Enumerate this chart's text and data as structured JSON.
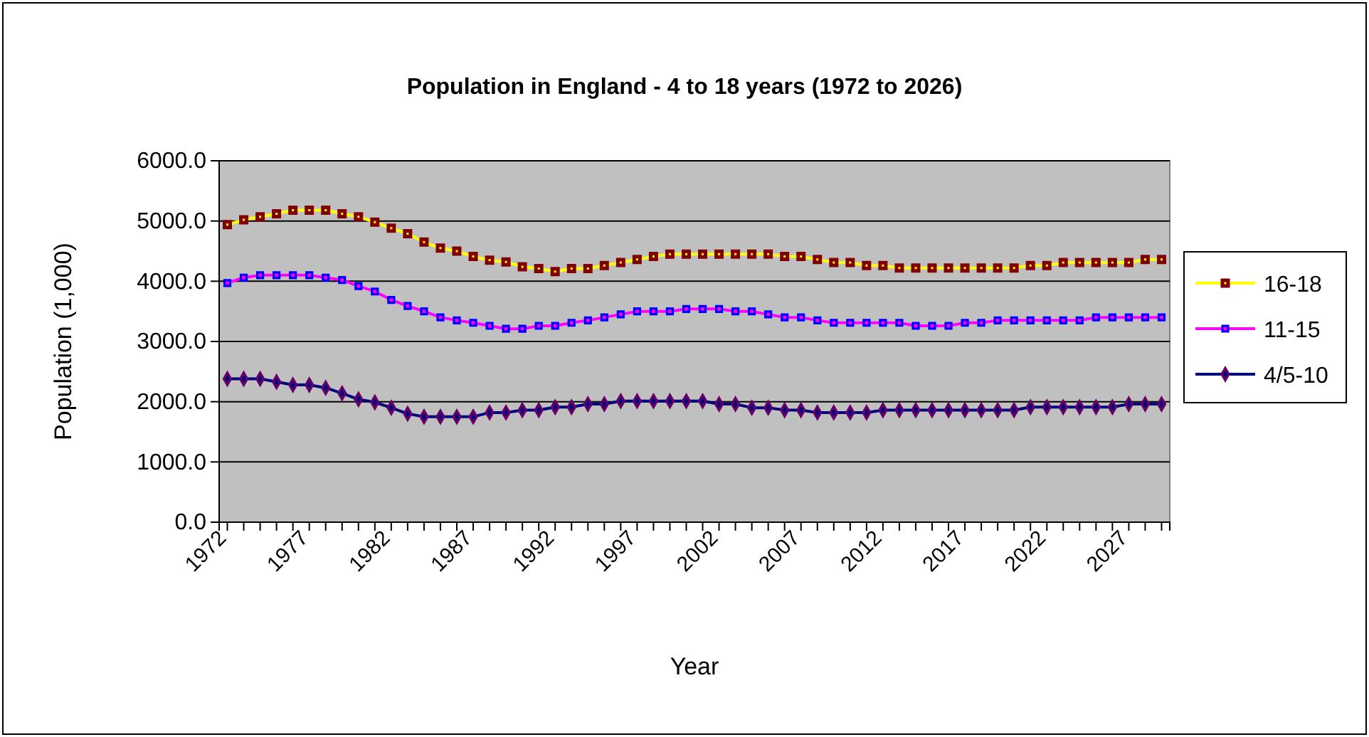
{
  "chart_data": {
    "type": "line",
    "title": "Population in England - 4 to 18 years (1972 to 2026)",
    "xlabel": "Year",
    "ylabel": "Population (1,000)",
    "categories": [
      "1972",
      null,
      null,
      null,
      null,
      "1977",
      null,
      null,
      null,
      null,
      "1982",
      null,
      null,
      null,
      null,
      "1987",
      null,
      null,
      null,
      null,
      "1992",
      null,
      null,
      null,
      null,
      "1997",
      null,
      null,
      null,
      null,
      "2002",
      null,
      null,
      null,
      null,
      "2007",
      null,
      null,
      null,
      null,
      "2012",
      null,
      null,
      null,
      null,
      "2017",
      null,
      null,
      null,
      null,
      "2022",
      null,
      null,
      null,
      null,
      "2027",
      null,
      null
    ],
    "ylim": [
      0,
      6000
    ],
    "yticks": [
      {
        "value": 0,
        "label": "0.0"
      },
      {
        "value": 1000,
        "label": "1000.0"
      },
      {
        "value": 2000,
        "label": "2000.0"
      },
      {
        "value": 3000,
        "label": "3000.0"
      },
      {
        "value": 4000,
        "label": "4000.0"
      },
      {
        "value": 5000,
        "label": "5000.0"
      },
      {
        "value": 6000,
        "label": "6000.0"
      }
    ],
    "grid": "y",
    "legend": "right",
    "series": [
      {
        "name": "16-18",
        "color": "#ffff00",
        "marker": "square",
        "values": [
          4940,
          5020,
          5070,
          5120,
          5180,
          5180,
          5180,
          5120,
          5070,
          4980,
          4880,
          4790,
          4650,
          4550,
          4500,
          4410,
          4350,
          4320,
          4240,
          4210,
          4160,
          4210,
          4210,
          4260,
          4310,
          4360,
          4410,
          4450,
          4450,
          4450,
          4450,
          4450,
          4450,
          4450,
          4410,
          4410,
          4360,
          4310,
          4310,
          4260,
          4260,
          4220,
          4220,
          4220,
          4220,
          4220,
          4220,
          4220,
          4220,
          4260,
          4260,
          4310,
          4310,
          4310,
          4310,
          4310,
          4360,
          4360
        ]
      },
      {
        "name": "11-15",
        "color": "#ff00ff",
        "marker": "square",
        "values": [
          3970,
          4060,
          4100,
          4100,
          4100,
          4100,
          4060,
          4020,
          3920,
          3830,
          3690,
          3590,
          3500,
          3400,
          3350,
          3310,
          3260,
          3210,
          3210,
          3260,
          3260,
          3310,
          3350,
          3400,
          3450,
          3500,
          3500,
          3500,
          3540,
          3540,
          3540,
          3500,
          3500,
          3450,
          3400,
          3400,
          3350,
          3310,
          3310,
          3310,
          3310,
          3310,
          3260,
          3260,
          3260,
          3310,
          3310,
          3350,
          3350,
          3350,
          3350,
          3350,
          3350,
          3400,
          3400,
          3400,
          3400,
          3400
        ]
      },
      {
        "name": "4/5-10",
        "color": "#000080",
        "marker": "diamond",
        "values": [
          2380,
          2380,
          2380,
          2330,
          2280,
          2280,
          2230,
          2140,
          2040,
          1990,
          1900,
          1800,
          1750,
          1750,
          1750,
          1750,
          1820,
          1820,
          1860,
          1860,
          1910,
          1910,
          1960,
          1960,
          2010,
          2010,
          2010,
          2010,
          2010,
          2010,
          1960,
          1960,
          1900,
          1900,
          1860,
          1860,
          1820,
          1820,
          1820,
          1820,
          1860,
          1860,
          1860,
          1860,
          1860,
          1860,
          1860,
          1860,
          1860,
          1910,
          1910,
          1910,
          1910,
          1910,
          1910,
          1960,
          1960,
          1960
        ]
      }
    ]
  }
}
